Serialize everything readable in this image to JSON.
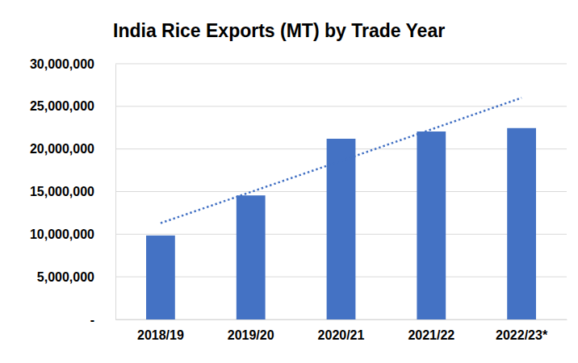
{
  "chart_data": {
    "type": "bar",
    "title": "India Rice Exports (MT) by Trade Year",
    "categories": [
      "2018/19",
      "2019/20",
      "2020/21",
      "2021/22",
      "2022/23*"
    ],
    "series": [
      {
        "type": "bar",
        "color": "#4472c4",
        "values": [
          9850000,
          14550000,
          21200000,
          22050000,
          22450000
        ]
      },
      {
        "type": "line",
        "color": "#4472c4",
        "line_style": "dotted",
        "values": [
          11300000,
          14950000,
          18600000,
          22300000,
          26000000
        ]
      }
    ],
    "ylim": [
      0,
      30000000
    ],
    "yticks": [
      {
        "value": 0,
        "label": "-"
      },
      {
        "value": 5000000,
        "label": "5,000,000"
      },
      {
        "value": 10000000,
        "label": "10,000,000"
      },
      {
        "value": 15000000,
        "label": "15,000,000"
      },
      {
        "value": 20000000,
        "label": "20,000,000"
      },
      {
        "value": 25000000,
        "label": "25,000,000"
      },
      {
        "value": 30000000,
        "label": "30,000,000"
      }
    ],
    "grid": true
  }
}
